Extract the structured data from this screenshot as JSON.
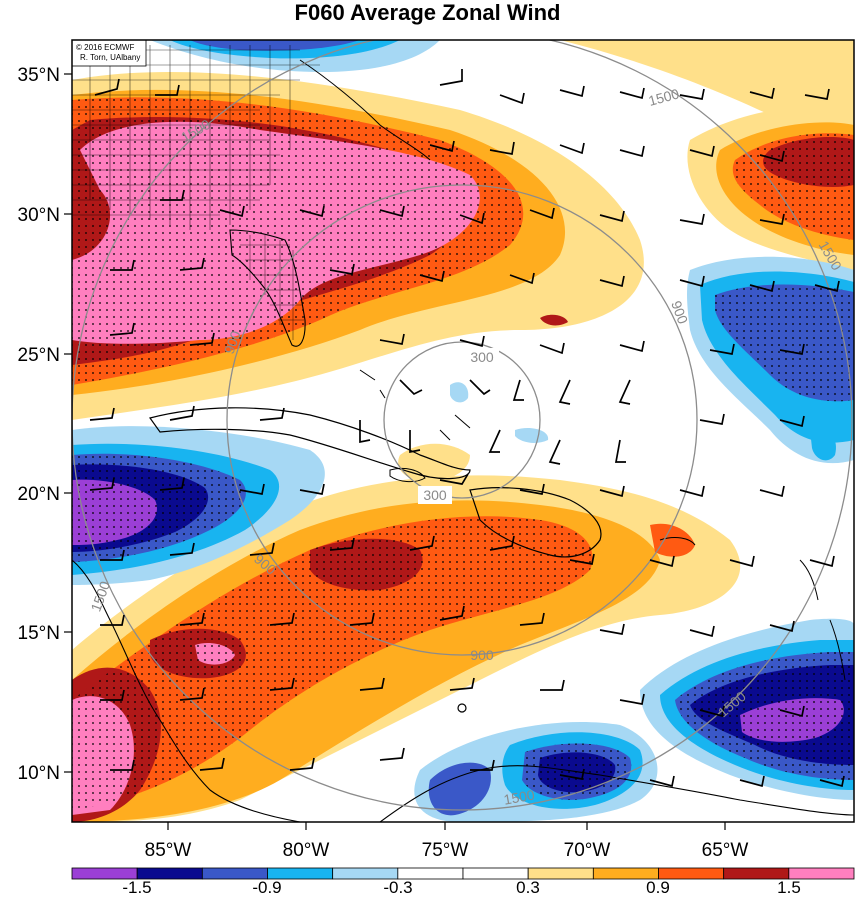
{
  "title": "F060 Average Zonal Wind",
  "credit": {
    "line1": "© 2016 ECMWF",
    "line2": "R. Torn, UAlbany"
  },
  "lat_labels": [
    "35°N",
    "30°N",
    "25°N",
    "20°N",
    "15°N",
    "10°N"
  ],
  "lon_labels": [
    "85°W",
    "80°W",
    "75°W",
    "70°W",
    "65°W"
  ],
  "contour_labels": [
    "300",
    "300",
    "900",
    "900",
    "900",
    "900",
    "1500",
    "1500",
    "1500",
    "1500",
    "1500",
    "1500"
  ],
  "colorbar": {
    "labels": [
      "-1.5",
      "-0.9",
      "-0.3",
      "0.3",
      "0.9",
      "1.5"
    ],
    "colors": [
      "#9b3fd6",
      "#0a0a8f",
      "#3a58c8",
      "#18b4f0",
      "#a6d8f4",
      "#ffffff",
      "#ffffff",
      "#ffe08a",
      "#ffad1f",
      "#ff5a12",
      "#b01818",
      "#ff7fbf"
    ]
  },
  "fill_colors": {
    "strong_neg": "#9b3fd6",
    "neg3": "#0a0a8f",
    "neg2": "#3a58c8",
    "neg1": "#18b4f0",
    "weak_neg": "#a6d8f4",
    "weak_pos": "#ffe08a",
    "pos1": "#ffad1f",
    "pos2": "#ff5a12",
    "pos3": "#b01818",
    "strong_pos": "#ff7fbf"
  }
}
